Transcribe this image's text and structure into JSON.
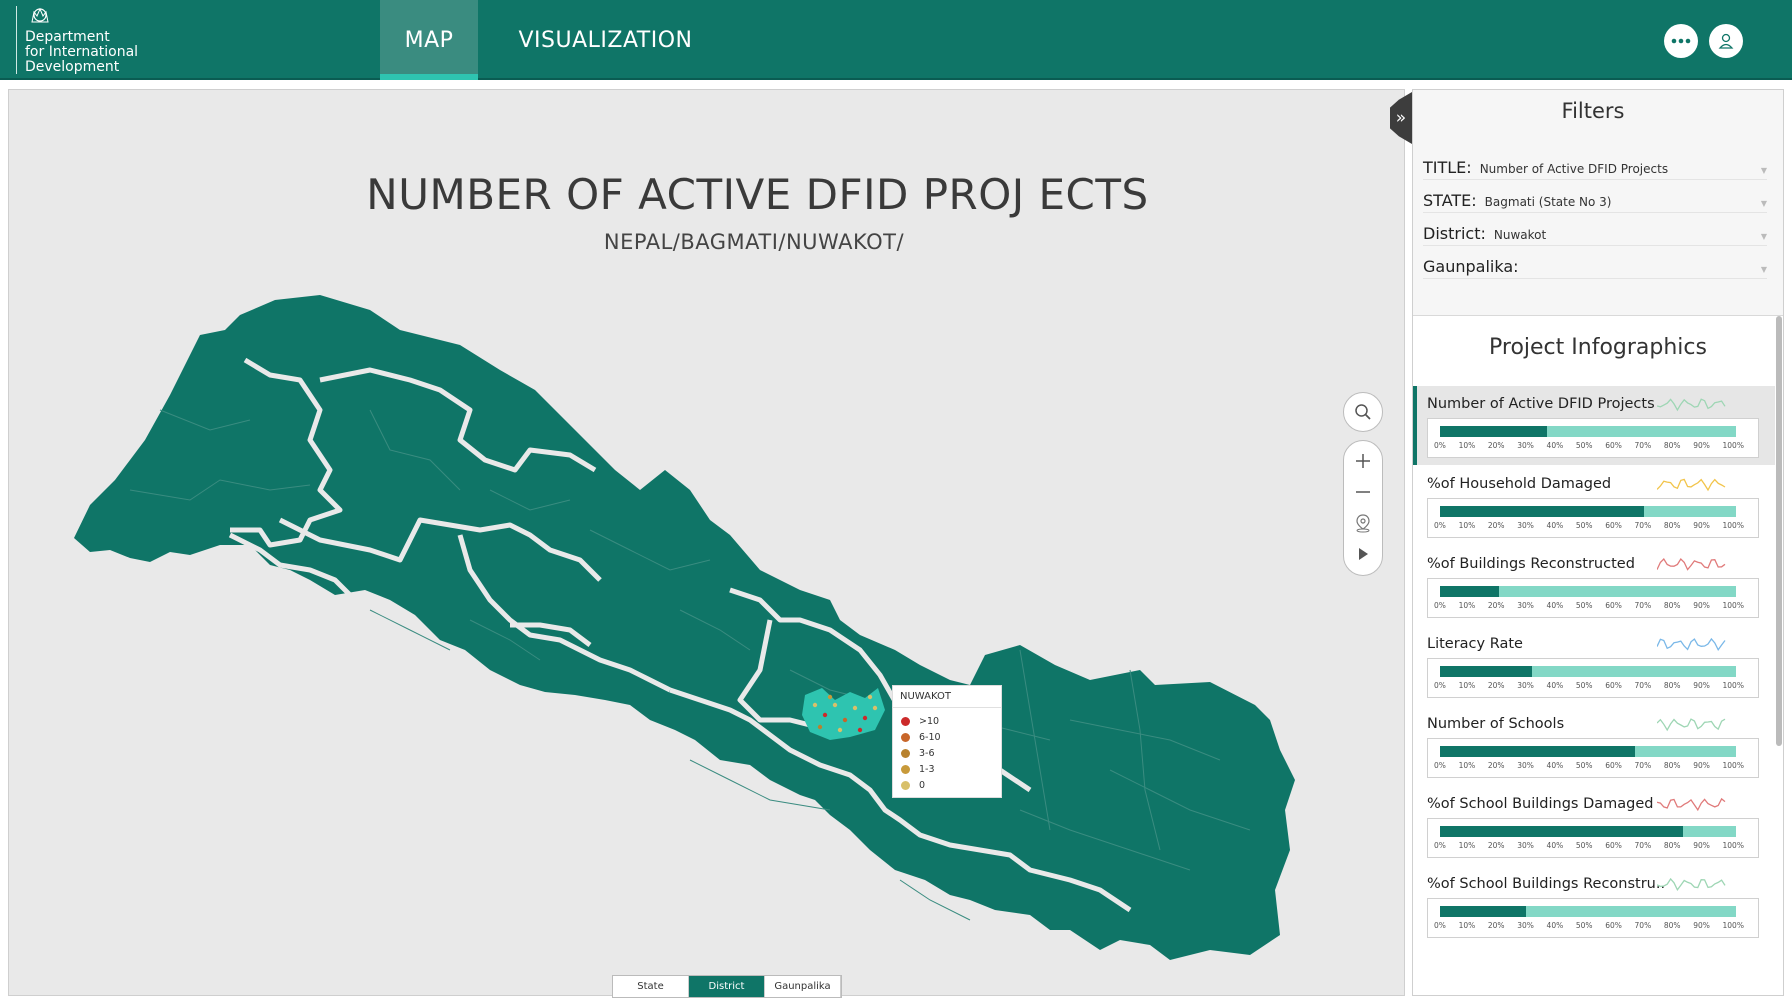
{
  "header": {
    "logo_lines": [
      "Department",
      "for International",
      "Development"
    ],
    "tabs": [
      {
        "label": "MAP",
        "active": true
      },
      {
        "label": "VISUALIZATION",
        "active": false
      }
    ],
    "more_icon": "more-horizontal-icon",
    "user_icon": "user-icon"
  },
  "map": {
    "title": "NUMBER OF ACTIVE DFID PROJ ECTS",
    "subtitle": "NEPAL/BAGMATI/NUWAKOT/",
    "region_color": "#0f7567",
    "highlight_color": "#2ec4b0",
    "legend": {
      "title": "NUWAKOT",
      "items": [
        {
          "label": ">10",
          "color": "#cc2a2a"
        },
        {
          "label": "6-10",
          "color": "#c8662a"
        },
        {
          "label": "3-6",
          "color": "#b8822e"
        },
        {
          "label": "1-3",
          "color": "#c89a3a"
        },
        {
          "label": "0",
          "color": "#d8c06a"
        }
      ]
    },
    "tools": [
      "search-icon",
      "zoom-in-icon",
      "zoom-out-icon",
      "location-pin-icon",
      "play-icon"
    ],
    "levels": [
      {
        "label": "State",
        "active": false
      },
      {
        "label": "District",
        "active": true
      },
      {
        "label": "Gaunpalika",
        "active": false
      }
    ]
  },
  "filters": {
    "title": "Filters",
    "rows": [
      {
        "label": "TITLE:",
        "value": "Number of Active DFID Projects"
      },
      {
        "label": "STATE:",
        "value": "Bagmati (State No 3)"
      },
      {
        "label": "District:",
        "value": "Nuwakot"
      },
      {
        "label": "Gaunpalika:",
        "value": ""
      }
    ]
  },
  "infographics": {
    "title": "Project Infographics",
    "ticks": [
      "0%",
      "10%",
      "20%",
      "30%",
      "40%",
      "50%",
      "60%",
      "70%",
      "80%",
      "90%",
      "100%"
    ],
    "items": [
      {
        "label": "Number of Active DFID Projects",
        "value": 0.36,
        "spark_color": "#9ed6b4",
        "active": true
      },
      {
        "label": "%of Household Damaged",
        "value": 0.69,
        "spark_color": "#f2c44a",
        "active": false
      },
      {
        "label": "%of Buildings Reconstructed",
        "value": 0.2,
        "spark_color": "#e07a7a",
        "active": false
      },
      {
        "label": "Literacy Rate",
        "value": 0.31,
        "spark_color": "#7ab8e8",
        "active": false
      },
      {
        "label": "Number of Schools",
        "value": 0.66,
        "spark_color": "#9ed6b4",
        "active": false
      },
      {
        "label": "%of School Buildings Damaged",
        "value": 0.82,
        "spark_color": "#e07a7a",
        "active": false
      },
      {
        "label": "%of School Buildings Reconstru..",
        "value": 0.29,
        "spark_color": "#9ed6b4",
        "active": false
      }
    ]
  }
}
